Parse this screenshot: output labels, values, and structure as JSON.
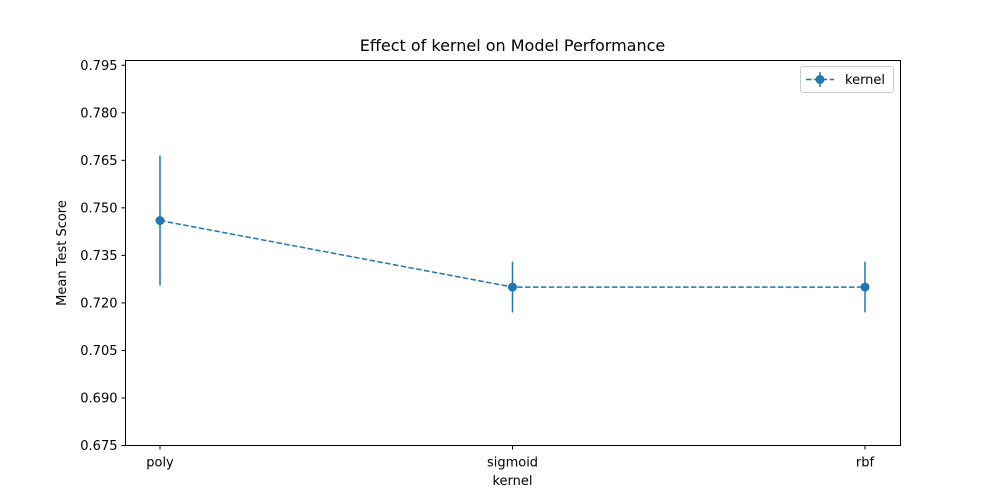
{
  "chart_data": {
    "type": "line",
    "title": "Effect of kernel on Model Performance",
    "xlabel": "kernel",
    "ylabel": "Mean Test Score",
    "categories": [
      "poly",
      "sigmoid",
      "rbf"
    ],
    "series": [
      {
        "name": "kernel",
        "values": [
          0.746,
          0.725,
          0.725
        ],
        "errors": [
          0.0205,
          0.008,
          0.008
        ],
        "color": "#1f77b4",
        "line_style": "dashed",
        "marker": "circle"
      }
    ],
    "ylim": [
      0.675,
      0.7965
    ],
    "yticks": [
      0.675,
      0.69,
      0.705,
      0.72,
      0.735,
      0.75,
      0.765,
      0.78,
      0.795
    ],
    "ytick_labels": [
      "0.675",
      "0.690",
      "0.705",
      "0.720",
      "0.735",
      "0.750",
      "0.765",
      "0.780",
      "0.795"
    ],
    "grid": false,
    "legend_position": "top-right"
  }
}
